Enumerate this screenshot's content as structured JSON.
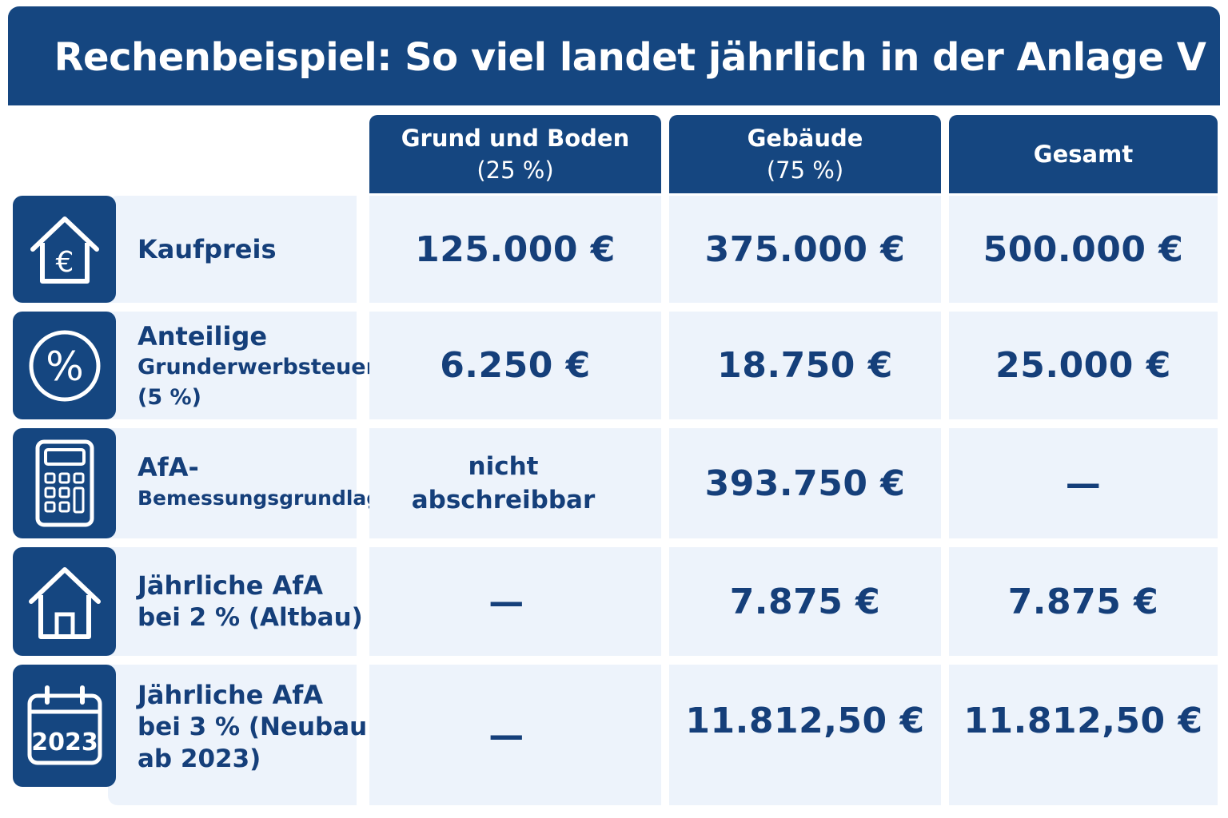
{
  "title": "Rechenbeispiel: So viel landet jährlich in der Anlage V",
  "columns": [
    {
      "line1": "Grund und Boden",
      "line2": "(25 %)"
    },
    {
      "line1": "Gebäude",
      "line2": "(75 %)"
    },
    {
      "line1": "Gesamt",
      "line2": ""
    }
  ],
  "rows": [
    {
      "icon": "house-euro-icon",
      "label_line1": "Kaufpreis",
      "label_line2": "",
      "label_line3": "",
      "values": [
        "125.000 €",
        "375.000 €",
        "500.000 €"
      ]
    },
    {
      "icon": "percent-icon",
      "label_line1": "Anteilige",
      "label_line2": "Grunderwerbsteuer",
      "label_line3": "(5 %)",
      "values": [
        "6.250 €",
        "18.750 €",
        "25.000 €"
      ]
    },
    {
      "icon": "calculator-icon",
      "label_line1": "AfA-",
      "label_line2": "Bemessungsgrundlage",
      "label_line3": "",
      "values": [
        "nicht abschreibbar",
        "393.750 €",
        "—"
      ]
    },
    {
      "icon": "house-icon",
      "label_line1": "Jährliche AfA",
      "label_line2": "bei 2 % (Altbau)",
      "label_line3": "",
      "values": [
        "—",
        "7.875 €",
        "7.875 €"
      ]
    },
    {
      "icon": "calendar-icon",
      "icon_text": "2023",
      "label_line1": "Jährliche AfA",
      "label_line2": "bei 3 % (Neubau",
      "label_line3": "ab 2023)",
      "values": [
        "—",
        "11.812,50 €",
        "11.812,50 €"
      ]
    }
  ],
  "colors": {
    "primary": "#154680",
    "cell_bg": "#edf3fb",
    "text": "#153f7a"
  }
}
